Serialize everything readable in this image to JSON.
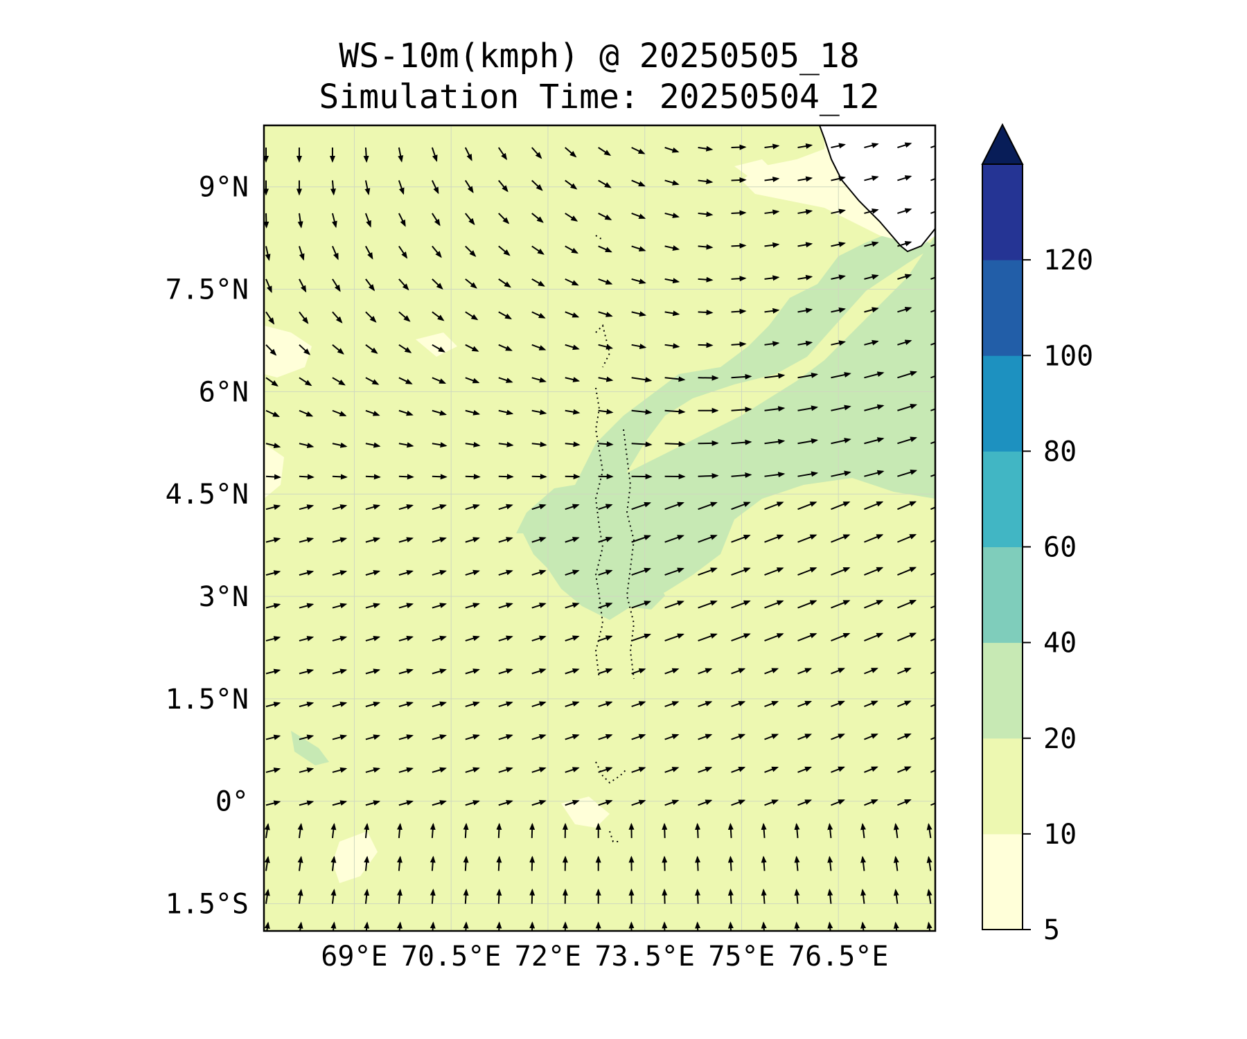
{
  "title": "WS-10m(kmph) @ 20250505_18",
  "subtitle": "Simulation Time: 20250504_12",
  "map": {
    "lon_range": [
      67.6,
      78.0
    ],
    "lat_range": [
      -1.9,
      9.9
    ],
    "x_ticks": [
      {
        "value": 69,
        "label": "69°E"
      },
      {
        "value": 70.5,
        "label": "70.5°E"
      },
      {
        "value": 72,
        "label": "72°E"
      },
      {
        "value": 73.5,
        "label": "73.5°E"
      },
      {
        "value": 75,
        "label": "75°E"
      },
      {
        "value": 76.5,
        "label": "76.5°E"
      }
    ],
    "y_ticks": [
      {
        "value": 9,
        "label": "9°N"
      },
      {
        "value": 7.5,
        "label": "7.5°N"
      },
      {
        "value": 6,
        "label": "6°N"
      },
      {
        "value": 4.5,
        "label": "4.5°N"
      },
      {
        "value": 3,
        "label": "3°N"
      },
      {
        "value": 1.5,
        "label": "1.5°N"
      },
      {
        "value": 0,
        "label": "0°"
      },
      {
        "value": -1.5,
        "label": "1.5°S"
      }
    ],
    "gridlines": true,
    "background_bin_color": "#edf8b1"
  },
  "colorbar": {
    "levels": [
      5,
      10,
      20,
      40,
      60,
      80,
      100,
      120
    ],
    "labels": [
      "5",
      "10",
      "20",
      "40",
      "60",
      "80",
      "100",
      "120"
    ],
    "colors": [
      "#ffffd9",
      "#edf8b1",
      "#c7e9b4",
      "#7fcdbb",
      "#41b6c4",
      "#1d91c0",
      "#225ea8",
      "#253494"
    ],
    "extend_color": "#081d58",
    "extend": "max"
  },
  "wind_field": {
    "description_units": "kmph",
    "lon_spacing": 0.5,
    "lat_spacing": 0.5
  },
  "regions_20_40": [
    "NE band from 73.3°E 4.0°N to 78°E 8.0°N",
    "central patch near 73.5°E 3.5°N"
  ],
  "regions_5_10": [
    "near-coast area north of 8.5°N east of 75.5°E",
    "small patches west and south"
  ]
}
